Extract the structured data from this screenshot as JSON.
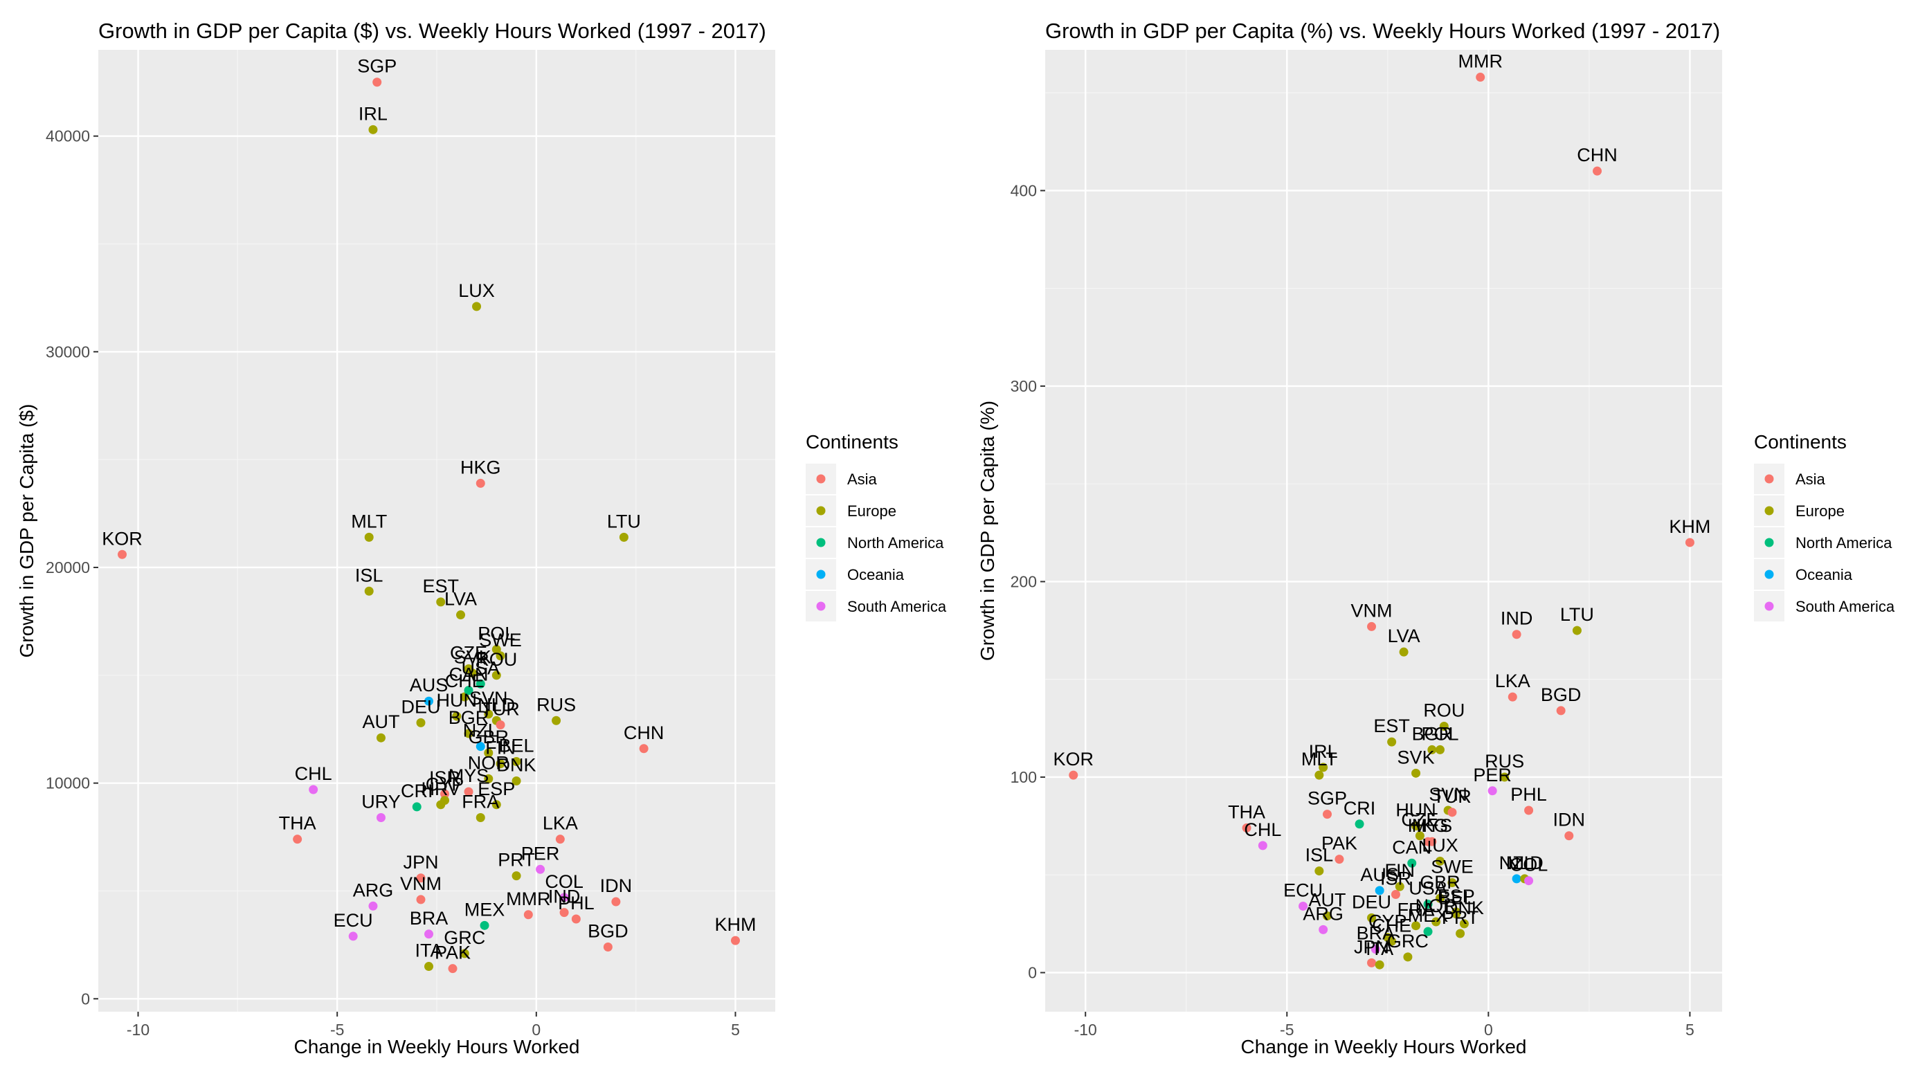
{
  "legend": {
    "title": "Continents",
    "items": [
      {
        "label": "Asia",
        "color": "#F8766D"
      },
      {
        "label": "Europe",
        "color": "#A3A500"
      },
      {
        "label": "North America",
        "color": "#00BF7D"
      },
      {
        "label": "Oceania",
        "color": "#00B0F6"
      },
      {
        "label": "South America",
        "color": "#E76BF3"
      }
    ]
  },
  "chart_data": [
    {
      "type": "scatter",
      "title": "Growth in GDP per Capita ($) vs. Weekly Hours Worked (1997 - 2017)",
      "xlabel": "Change in Weekly Hours Worked",
      "ylabel": "Growth in GDP per Capita ($)",
      "xlim": [
        -11.0,
        6.0
      ],
      "ylim": [
        -600,
        44000
      ],
      "xticks": [
        -10,
        -5,
        0,
        5
      ],
      "yticks": [
        0,
        10000,
        20000,
        30000,
        40000
      ],
      "ytick_labels": [
        "0",
        "10000",
        "20000",
        "30000",
        "40000"
      ],
      "grid": true,
      "legend_position": "right",
      "points": [
        {
          "label": "SGP",
          "x": -4.0,
          "y": 42500,
          "continent": "Asia"
        },
        {
          "label": "IRL",
          "x": -4.1,
          "y": 40300,
          "continent": "Europe"
        },
        {
          "label": "LUX",
          "x": -1.5,
          "y": 32100,
          "continent": "Europe"
        },
        {
          "label": "HKG",
          "x": -1.4,
          "y": 23900,
          "continent": "Asia"
        },
        {
          "label": "KOR",
          "x": -10.4,
          "y": 20600,
          "continent": "Asia"
        },
        {
          "label": "MLT",
          "x": -4.2,
          "y": 21400,
          "continent": "Europe"
        },
        {
          "label": "LTU",
          "x": 2.2,
          "y": 21400,
          "continent": "Europe"
        },
        {
          "label": "ISL",
          "x": -4.2,
          "y": 18900,
          "continent": "Europe"
        },
        {
          "label": "LVA",
          "x": -1.9,
          "y": 17800,
          "continent": "Europe"
        },
        {
          "label": "EST",
          "x": -2.4,
          "y": 18400,
          "continent": "Europe"
        },
        {
          "label": "POL",
          "x": -1.0,
          "y": 16200,
          "continent": "Europe"
        },
        {
          "label": "SWE",
          "x": -0.9,
          "y": 15900,
          "continent": "Europe"
        },
        {
          "label": "SVK",
          "x": -1.6,
          "y": 15100,
          "continent": "Europe"
        },
        {
          "label": "CZE",
          "x": -1.7,
          "y": 15300,
          "continent": "Europe"
        },
        {
          "label": "ROU",
          "x": -1.0,
          "y": 15000,
          "continent": "Europe"
        },
        {
          "label": "USA",
          "x": -1.4,
          "y": 14600,
          "continent": "North America"
        },
        {
          "label": "CHE",
          "x": -1.8,
          "y": 14000,
          "continent": "Europe"
        },
        {
          "label": "CAN",
          "x": -1.7,
          "y": 14300,
          "continent": "North America"
        },
        {
          "label": "AUS",
          "x": -2.7,
          "y": 13800,
          "continent": "Oceania"
        },
        {
          "label": "SVN",
          "x": -1.2,
          "y": 13200,
          "continent": "Europe"
        },
        {
          "label": "NLD",
          "x": -1.0,
          "y": 12900,
          "continent": "Europe"
        },
        {
          "label": "RUS",
          "x": 0.5,
          "y": 12900,
          "continent": "Europe"
        },
        {
          "label": "DEU",
          "x": -2.9,
          "y": 12800,
          "continent": "Europe"
        },
        {
          "label": "HUN",
          "x": -2.0,
          "y": 13100,
          "continent": "Europe"
        },
        {
          "label": "TUR",
          "x": -0.9,
          "y": 12700,
          "continent": "Asia"
        },
        {
          "label": "BGR",
          "x": -1.7,
          "y": 12300,
          "continent": "Europe"
        },
        {
          "label": "AUT",
          "x": -3.9,
          "y": 12100,
          "continent": "Europe"
        },
        {
          "label": "GBR",
          "x": -1.2,
          "y": 11400,
          "continent": "Europe"
        },
        {
          "label": "NZL",
          "x": -1.4,
          "y": 11700,
          "continent": "Oceania"
        },
        {
          "label": "CHN",
          "x": 2.7,
          "y": 11600,
          "continent": "Asia"
        },
        {
          "label": "BEL",
          "x": -0.5,
          "y": 11000,
          "continent": "Europe"
        },
        {
          "label": "FIN",
          "x": -0.9,
          "y": 10900,
          "continent": "Europe"
        },
        {
          "label": "NOR",
          "x": -1.2,
          "y": 10200,
          "continent": "Europe"
        },
        {
          "label": "DNK",
          "x": -0.5,
          "y": 10100,
          "continent": "Europe"
        },
        {
          "label": "CHL",
          "x": -5.6,
          "y": 9700,
          "continent": "South America"
        },
        {
          "label": "ISR",
          "x": -2.3,
          "y": 9500,
          "continent": "Asia"
        },
        {
          "label": "MYS",
          "x": -1.7,
          "y": 9600,
          "continent": "Asia"
        },
        {
          "label": "CYP",
          "x": -2.3,
          "y": 9200,
          "continent": "Europe"
        },
        {
          "label": "HRV",
          "x": -2.4,
          "y": 9000,
          "continent": "Europe"
        },
        {
          "label": "ESP",
          "x": -1.0,
          "y": 9000,
          "continent": "Europe"
        },
        {
          "label": "URY",
          "x": -3.9,
          "y": 8400,
          "continent": "South America"
        },
        {
          "label": "CRI",
          "x": -3.0,
          "y": 8900,
          "continent": "North America"
        },
        {
          "label": "FRA",
          "x": -1.4,
          "y": 8400,
          "continent": "Europe"
        },
        {
          "label": "THA",
          "x": -6.0,
          "y": 7400,
          "continent": "Asia"
        },
        {
          "label": "LKA",
          "x": 0.6,
          "y": 7400,
          "continent": "Asia"
        },
        {
          "label": "PER",
          "x": 0.1,
          "y": 6000,
          "continent": "South America"
        },
        {
          "label": "JPN",
          "x": -2.9,
          "y": 5600,
          "continent": "Asia"
        },
        {
          "label": "PRT",
          "x": -0.5,
          "y": 5700,
          "continent": "Europe"
        },
        {
          "label": "COL",
          "x": 0.7,
          "y": 4700,
          "continent": "South America"
        },
        {
          "label": "VNM",
          "x": -2.9,
          "y": 4600,
          "continent": "Asia"
        },
        {
          "label": "IDN",
          "x": 2.0,
          "y": 4500,
          "continent": "Asia"
        },
        {
          "label": "ARG",
          "x": -4.1,
          "y": 4300,
          "continent": "South America"
        },
        {
          "label": "IND",
          "x": 0.7,
          "y": 4000,
          "continent": "Asia"
        },
        {
          "label": "MMR",
          "x": -0.2,
          "y": 3900,
          "continent": "Asia"
        },
        {
          "label": "PHL",
          "x": 1.0,
          "y": 3700,
          "continent": "Asia"
        },
        {
          "label": "MEX",
          "x": -1.3,
          "y": 3400,
          "continent": "North America"
        },
        {
          "label": "BRA",
          "x": -2.7,
          "y": 3000,
          "continent": "South America"
        },
        {
          "label": "ECU",
          "x": -4.6,
          "y": 2900,
          "continent": "South America"
        },
        {
          "label": "KHM",
          "x": 5.0,
          "y": 2700,
          "continent": "Asia"
        },
        {
          "label": "BGD",
          "x": 1.8,
          "y": 2400,
          "continent": "Asia"
        },
        {
          "label": "GRC",
          "x": -1.8,
          "y": 2100,
          "continent": "Europe"
        },
        {
          "label": "ITA",
          "x": -2.7,
          "y": 1500,
          "continent": "Europe"
        },
        {
          "label": "PAK",
          "x": -2.1,
          "y": 1400,
          "continent": "Asia"
        }
      ]
    },
    {
      "type": "scatter",
      "title": "Growth in GDP per Capita (%) vs. Weekly Hours Worked (1997 - 2017)",
      "xlabel": "Change in Weekly Hours Worked",
      "ylabel": "Growth in GDP per Capita (%)",
      "xlim": [
        -11.0,
        5.8
      ],
      "ylim": [
        -20,
        472
      ],
      "xticks": [
        -10,
        -5,
        0,
        5
      ],
      "yticks": [
        0,
        100,
        200,
        300,
        400
      ],
      "ytick_labels": [
        "0",
        "100",
        "200",
        "300",
        "400"
      ],
      "grid": true,
      "legend_position": "right",
      "points": [
        {
          "label": "MMR",
          "x": -0.2,
          "y": 458,
          "continent": "Asia"
        },
        {
          "label": "CHN",
          "x": 2.7,
          "y": 410,
          "continent": "Asia"
        },
        {
          "label": "KHM",
          "x": 5.0,
          "y": 220,
          "continent": "Asia"
        },
        {
          "label": "VNM",
          "x": -2.9,
          "y": 177,
          "continent": "Asia"
        },
        {
          "label": "LVA",
          "x": -2.1,
          "y": 164,
          "continent": "Europe"
        },
        {
          "label": "LTU",
          "x": 2.2,
          "y": 175,
          "continent": "Europe"
        },
        {
          "label": "IND",
          "x": 0.7,
          "y": 173,
          "continent": "Asia"
        },
        {
          "label": "LKA",
          "x": 0.6,
          "y": 141,
          "continent": "Asia"
        },
        {
          "label": "BGD",
          "x": 1.8,
          "y": 134,
          "continent": "Asia"
        },
        {
          "label": "ROU",
          "x": -1.1,
          "y": 126,
          "continent": "Europe"
        },
        {
          "label": "EST",
          "x": -2.4,
          "y": 118,
          "continent": "Europe"
        },
        {
          "label": "POL",
          "x": -1.2,
          "y": 114,
          "continent": "Europe"
        },
        {
          "label": "BGR",
          "x": -1.4,
          "y": 114,
          "continent": "Europe"
        },
        {
          "label": "IRL",
          "x": -4.1,
          "y": 105,
          "continent": "Europe"
        },
        {
          "label": "KOR",
          "x": -10.3,
          "y": 101,
          "continent": "Asia"
        },
        {
          "label": "MLT",
          "x": -4.2,
          "y": 101,
          "continent": "Europe"
        },
        {
          "label": "SVK",
          "x": -1.8,
          "y": 102,
          "continent": "Europe"
        },
        {
          "label": "RUS",
          "x": 0.4,
          "y": 100,
          "continent": "Europe"
        },
        {
          "label": "PER",
          "x": 0.1,
          "y": 93,
          "continent": "South America"
        },
        {
          "label": "PHL",
          "x": 1.0,
          "y": 83,
          "continent": "Asia"
        },
        {
          "label": "SVN",
          "x": -1.0,
          "y": 83,
          "continent": "Europe"
        },
        {
          "label": "TUR",
          "x": -0.9,
          "y": 82,
          "continent": "Asia"
        },
        {
          "label": "SGP",
          "x": -4.0,
          "y": 81,
          "continent": "Asia"
        },
        {
          "label": "HUN",
          "x": -1.8,
          "y": 75,
          "continent": "Europe"
        },
        {
          "label": "CRI",
          "x": -3.2,
          "y": 76,
          "continent": "North America"
        },
        {
          "label": "THA",
          "x": -6.0,
          "y": 74,
          "continent": "Asia"
        },
        {
          "label": "IDN",
          "x": 2.0,
          "y": 70,
          "continent": "Asia"
        },
        {
          "label": "CZE",
          "x": -1.7,
          "y": 70,
          "continent": "Europe"
        },
        {
          "label": "HKG",
          "x": -1.5,
          "y": 67,
          "continent": "Asia"
        },
        {
          "label": "MYS",
          "x": -1.4,
          "y": 67,
          "continent": "Asia"
        },
        {
          "label": "CHL",
          "x": -5.6,
          "y": 65,
          "continent": "South America"
        },
        {
          "label": "PAK",
          "x": -3.7,
          "y": 58,
          "continent": "Asia"
        },
        {
          "label": "LUX",
          "x": -1.2,
          "y": 57,
          "continent": "Europe"
        },
        {
          "label": "CAN",
          "x": -1.9,
          "y": 56,
          "continent": "North America"
        },
        {
          "label": "ISL",
          "x": -4.2,
          "y": 52,
          "continent": "Europe"
        },
        {
          "label": "NZL",
          "x": 0.7,
          "y": 48,
          "continent": "Oceania"
        },
        {
          "label": "NLD",
          "x": 0.9,
          "y": 48,
          "continent": "Europe"
        },
        {
          "label": "SWE",
          "x": -0.9,
          "y": 46,
          "continent": "Europe"
        },
        {
          "label": "COL",
          "x": 1.0,
          "y": 47,
          "continent": "South America"
        },
        {
          "label": "AUS",
          "x": -2.7,
          "y": 42,
          "continent": "Oceania"
        },
        {
          "label": "FIN",
          "x": -2.2,
          "y": 44,
          "continent": "Europe"
        },
        {
          "label": "GBR",
          "x": -1.2,
          "y": 38,
          "continent": "Europe"
        },
        {
          "label": "ISR",
          "x": -2.3,
          "y": 40,
          "continent": "Asia"
        },
        {
          "label": "ECU",
          "x": -4.6,
          "y": 34,
          "continent": "South America"
        },
        {
          "label": "USA",
          "x": -1.5,
          "y": 35,
          "continent": "North America"
        },
        {
          "label": "ESP",
          "x": -0.8,
          "y": 31,
          "continent": "Europe"
        },
        {
          "label": "BEL",
          "x": -0.8,
          "y": 30,
          "continent": "Europe"
        },
        {
          "label": "AUT",
          "x": -4.0,
          "y": 29,
          "continent": "Europe"
        },
        {
          "label": "DEU",
          "x": -2.9,
          "y": 28,
          "continent": "Europe"
        },
        {
          "label": "NOR",
          "x": -1.3,
          "y": 26,
          "continent": "Europe"
        },
        {
          "label": "DNK",
          "x": -0.6,
          "y": 25,
          "continent": "Europe"
        },
        {
          "label": "ARG",
          "x": -4.1,
          "y": 22,
          "continent": "South America"
        },
        {
          "label": "PRT",
          "x": -0.7,
          "y": 20,
          "continent": "Europe"
        },
        {
          "label": "CHE",
          "x": -2.4,
          "y": 16,
          "continent": "Europe"
        },
        {
          "label": "CYP",
          "x": -2.5,
          "y": 18,
          "continent": "Europe"
        },
        {
          "label": "BRA",
          "x": -2.8,
          "y": 12,
          "continent": "South America"
        },
        {
          "label": "FRA",
          "x": -1.8,
          "y": 24,
          "continent": "Europe"
        },
        {
          "label": "MEX",
          "x": -1.5,
          "y": 21,
          "continent": "North America"
        },
        {
          "label": "GRC",
          "x": -2.0,
          "y": 8,
          "continent": "Europe"
        },
        {
          "label": "JPN",
          "x": -2.9,
          "y": 5,
          "continent": "Asia"
        },
        {
          "label": "ITA",
          "x": -2.7,
          "y": 4,
          "continent": "Europe"
        }
      ]
    }
  ]
}
